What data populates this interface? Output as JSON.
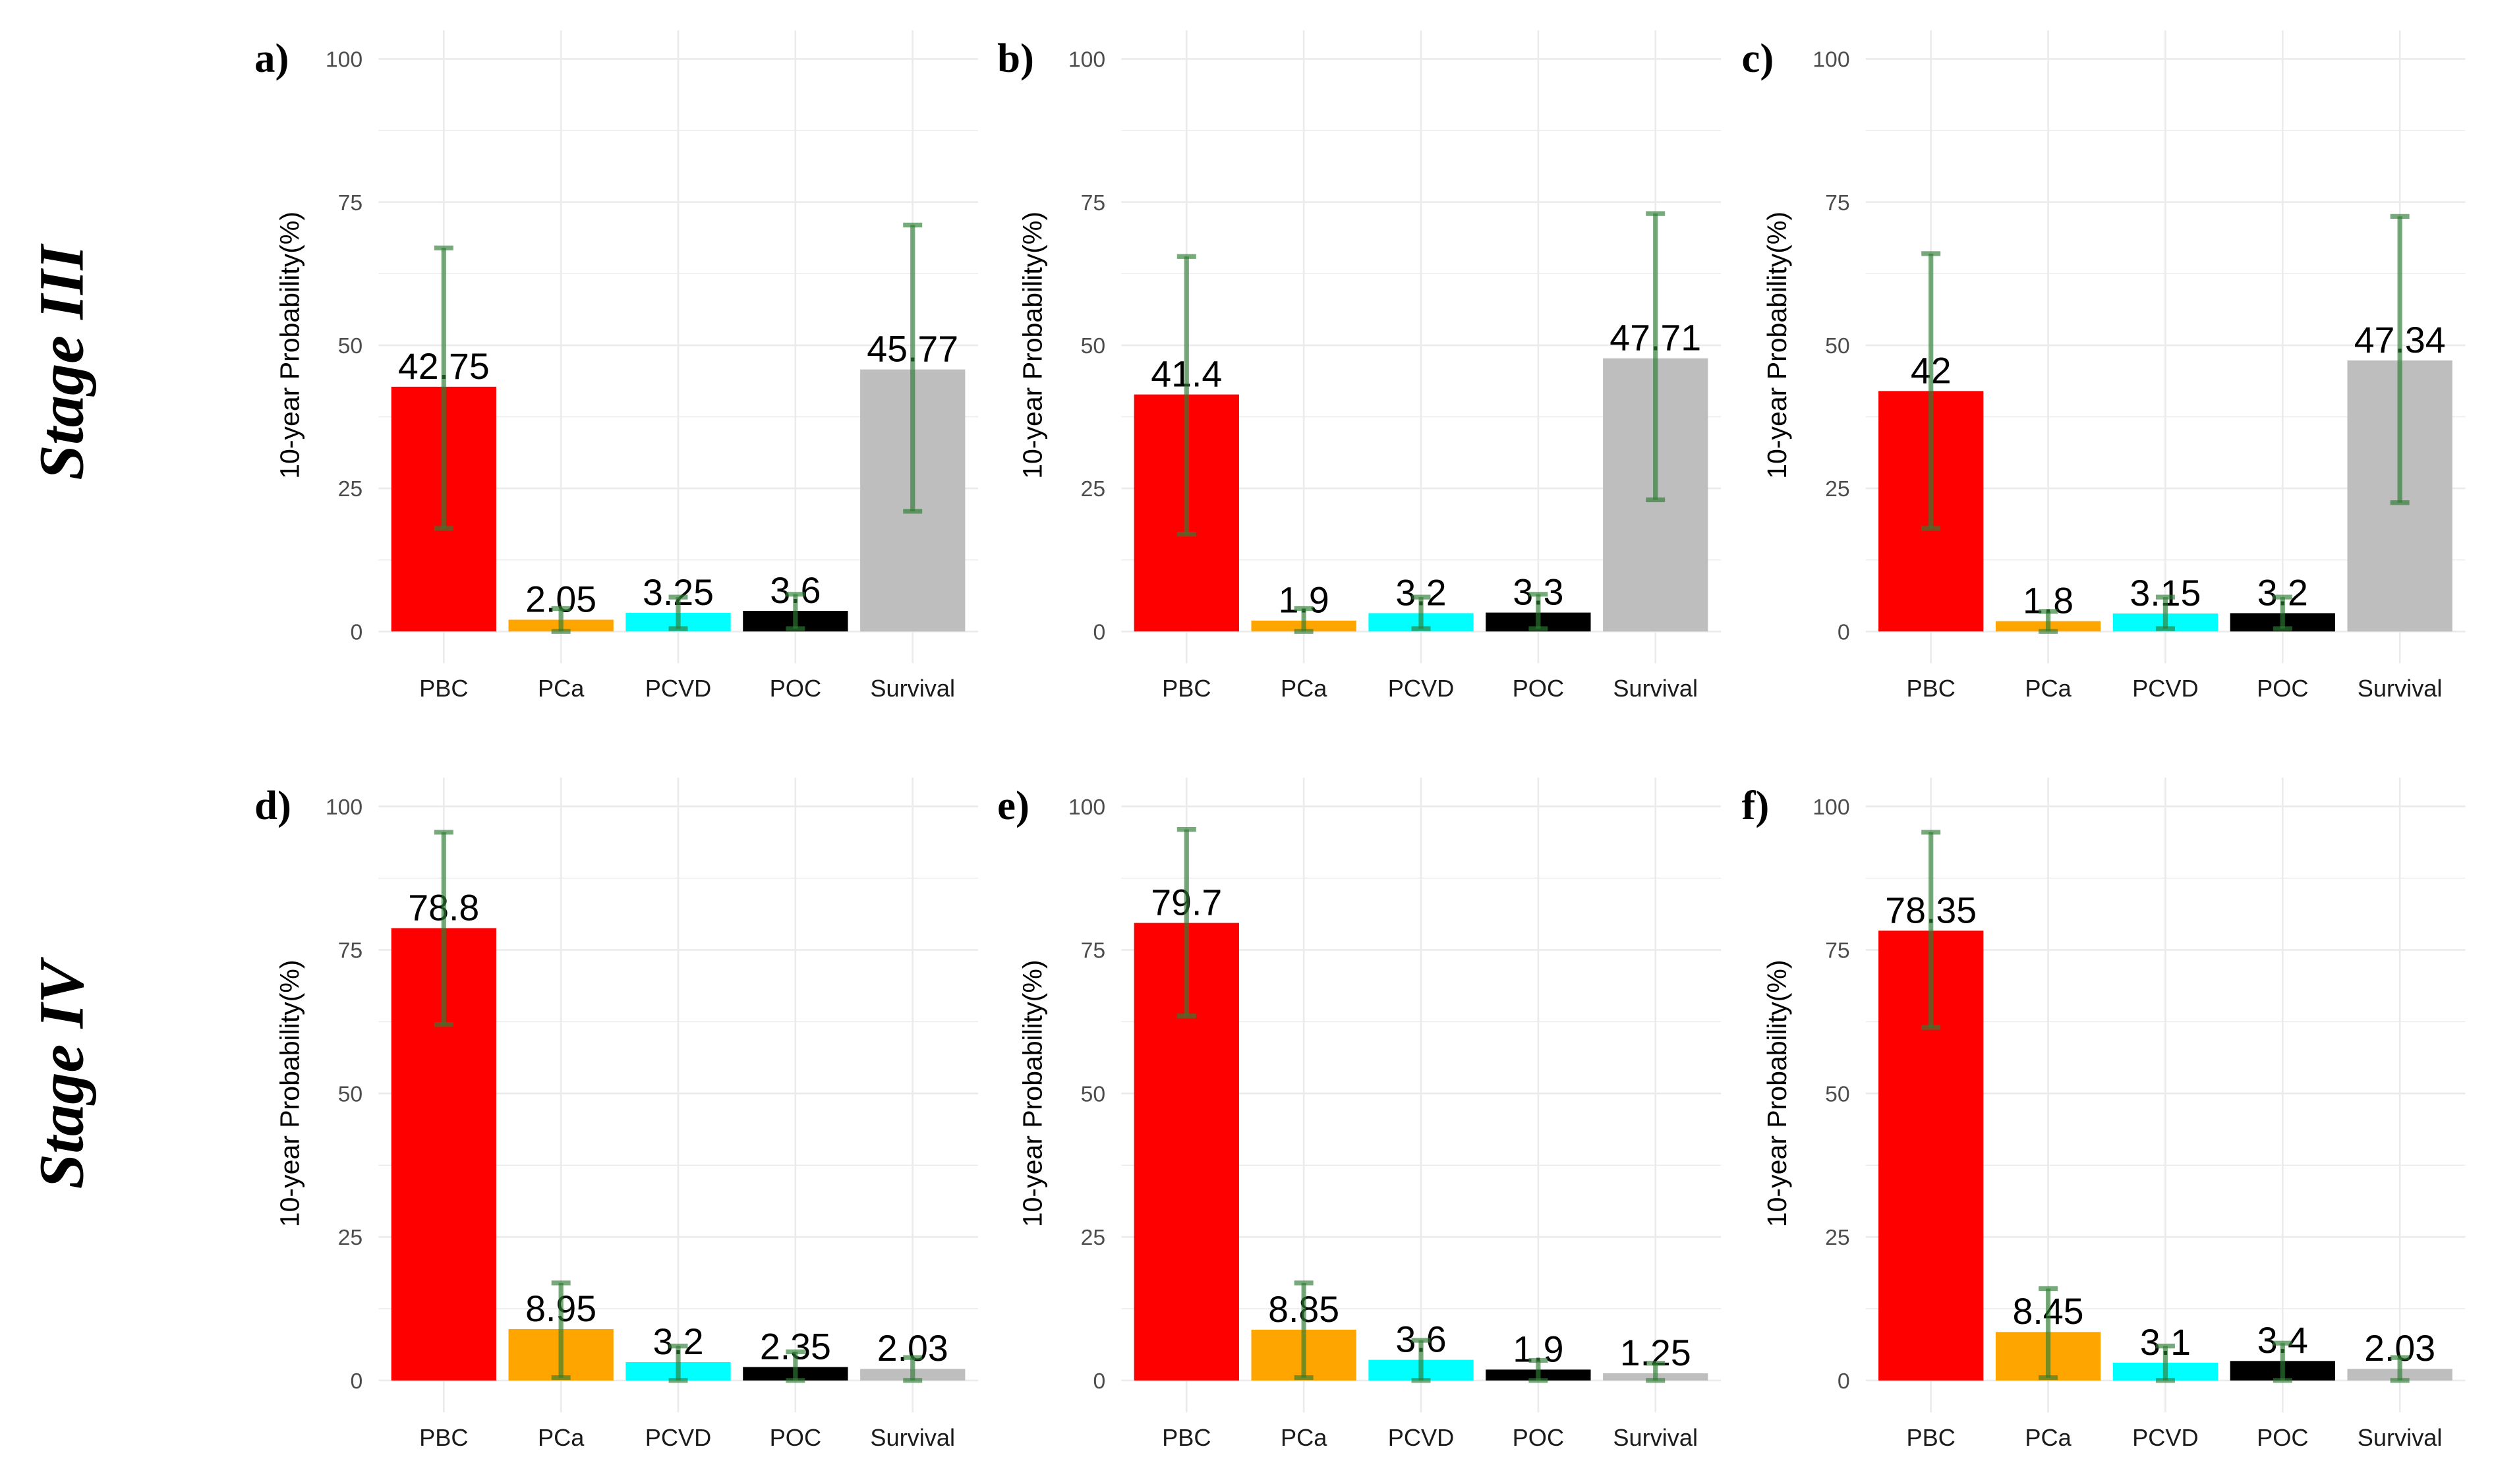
{
  "row_labels": [
    "Stage III",
    "Stage IV"
  ],
  "colors": {
    "PBC": "#FF0000",
    "PCa": "#FFA500",
    "PCVD": "#00FFFF",
    "POC": "#000000",
    "Survival": "#BEBEBE",
    "errorbar": "#2E7D32",
    "grid": "#EBEBEB"
  },
  "chart_data": [
    {
      "panel": "a)",
      "type": "bar",
      "ylabel": "10-year Probability(%)",
      "ylim": [
        0,
        100
      ],
      "yticks": [
        0,
        25,
        50,
        75,
        100
      ],
      "categories": [
        "PBC",
        "PCa",
        "PCVD",
        "POC",
        "Survival"
      ],
      "values": [
        42.75,
        2.05,
        3.25,
        3.6,
        45.77
      ],
      "labels": [
        "42.75",
        "2.05",
        "3.25",
        "3.6",
        "45.77"
      ],
      "error_low": [
        18,
        0,
        0.5,
        0.5,
        21
      ],
      "error_high": [
        67,
        4,
        6,
        6.5,
        71
      ]
    },
    {
      "panel": "b)",
      "type": "bar",
      "ylabel": "10-year Probability(%)",
      "ylim": [
        0,
        100
      ],
      "yticks": [
        0,
        25,
        50,
        75,
        100
      ],
      "categories": [
        "PBC",
        "PCa",
        "PCVD",
        "POC",
        "Survival"
      ],
      "values": [
        41.4,
        1.9,
        3.2,
        3.3,
        47.71
      ],
      "labels": [
        "41.4",
        "1.9",
        "3.2",
        "3.3",
        "47.71"
      ],
      "error_low": [
        17,
        0,
        0.5,
        0.5,
        23
      ],
      "error_high": [
        65.5,
        4,
        6,
        6.5,
        73
      ]
    },
    {
      "panel": "c)",
      "type": "bar",
      "ylabel": "10-year Probability(%)",
      "ylim": [
        0,
        100
      ],
      "yticks": [
        0,
        25,
        50,
        75,
        100
      ],
      "categories": [
        "PBC",
        "PCa",
        "PCVD",
        "POC",
        "Survival"
      ],
      "values": [
        42,
        1.8,
        3.15,
        3.2,
        47.34
      ],
      "labels": [
        "42",
        "1.8",
        "3.15",
        "3.2",
        "47.34"
      ],
      "error_low": [
        18,
        0,
        0.5,
        0.5,
        22.5
      ],
      "error_high": [
        66,
        3.5,
        6,
        6,
        72.5
      ]
    },
    {
      "panel": "d)",
      "type": "bar",
      "ylabel": "10-year Probability(%)",
      "ylim": [
        0,
        100
      ],
      "yticks": [
        0,
        25,
        50,
        75,
        100
      ],
      "categories": [
        "PBC",
        "PCa",
        "PCVD",
        "POC",
        "Survival"
      ],
      "values": [
        78.8,
        8.95,
        3.2,
        2.35,
        2.03
      ],
      "labels": [
        "78.8",
        "8.95",
        "3.2",
        "2.35",
        "2.03"
      ],
      "error_low": [
        62,
        0.5,
        0,
        0,
        0
      ],
      "error_high": [
        95.5,
        17,
        6,
        5,
        4
      ]
    },
    {
      "panel": "e)",
      "type": "bar",
      "ylabel": "10-year Probability(%)",
      "ylim": [
        0,
        100
      ],
      "yticks": [
        0,
        25,
        50,
        75,
        100
      ],
      "categories": [
        "PBC",
        "PCa",
        "PCVD",
        "POC",
        "Survival"
      ],
      "values": [
        79.7,
        8.85,
        3.6,
        1.9,
        1.25
      ],
      "labels": [
        "79.7",
        "8.85",
        "3.6",
        "1.9",
        "1.25"
      ],
      "error_low": [
        63.5,
        0.5,
        0,
        0,
        0
      ],
      "error_high": [
        96,
        17,
        7,
        3.5,
        3
      ]
    },
    {
      "panel": "f)",
      "type": "bar",
      "ylabel": "10-year Probability(%)",
      "ylim": [
        0,
        100
      ],
      "yticks": [
        0,
        25,
        50,
        75,
        100
      ],
      "categories": [
        "PBC",
        "PCa",
        "PCVD",
        "POC",
        "Survival"
      ],
      "values": [
        78.35,
        8.45,
        3.1,
        3.4,
        2.03
      ],
      "labels": [
        "78.35",
        "8.45",
        "3.1",
        "3.4",
        "2.03"
      ],
      "error_low": [
        61.5,
        0.5,
        0,
        0,
        0
      ],
      "error_high": [
        95.5,
        16,
        6,
        6.5,
        4
      ]
    }
  ]
}
